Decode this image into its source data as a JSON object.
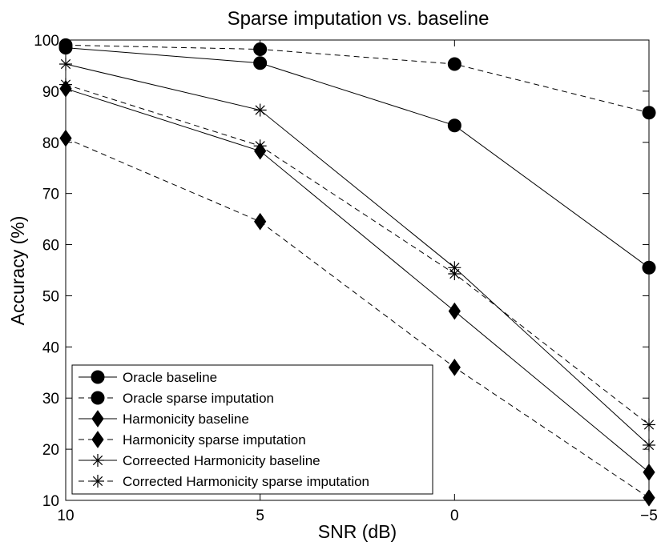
{
  "chart_data": {
    "type": "line",
    "title": "Sparse imputation vs. baseline",
    "xlabel": "SNR (dB)",
    "ylabel": "Accuracy (%)",
    "x": [
      10,
      5,
      0,
      -5
    ],
    "x_tick_labels": [
      "10",
      "5",
      "0",
      "−5"
    ],
    "xlim": [
      10,
      -5
    ],
    "ylim": [
      10,
      100
    ],
    "y_ticks": [
      10,
      20,
      30,
      40,
      50,
      60,
      70,
      80,
      90,
      100
    ],
    "grid": false,
    "legend_position": "bottom-left",
    "series": [
      {
        "name": "Oracle baseline",
        "values": [
          98.5,
          95.5,
          83.3,
          55.5
        ],
        "marker": "circle",
        "line": "solid",
        "color": "#000000"
      },
      {
        "name": "Oracle sparse imputation",
        "values": [
          99.0,
          98.2,
          95.3,
          85.8
        ],
        "marker": "circle",
        "line": "dashed",
        "color": "#000000"
      },
      {
        "name": "Harmonicity baseline",
        "values": [
          90.5,
          78.3,
          47.0,
          15.5
        ],
        "marker": "diamond",
        "line": "solid",
        "color": "#000000"
      },
      {
        "name": "Harmonicity sparse imputation",
        "values": [
          80.8,
          64.5,
          36.0,
          10.5
        ],
        "marker": "diamond",
        "line": "dashed",
        "color": "#000000"
      },
      {
        "name": "Correected Harmonicity baseline",
        "values": [
          95.3,
          86.3,
          55.5,
          20.8
        ],
        "marker": "star",
        "line": "solid",
        "color": "#000000"
      },
      {
        "name": "Corrected Harmonicity sparse imputation",
        "values": [
          91.3,
          79.3,
          54.3,
          24.8
        ],
        "marker": "star",
        "line": "dashed",
        "color": "#000000"
      }
    ]
  }
}
